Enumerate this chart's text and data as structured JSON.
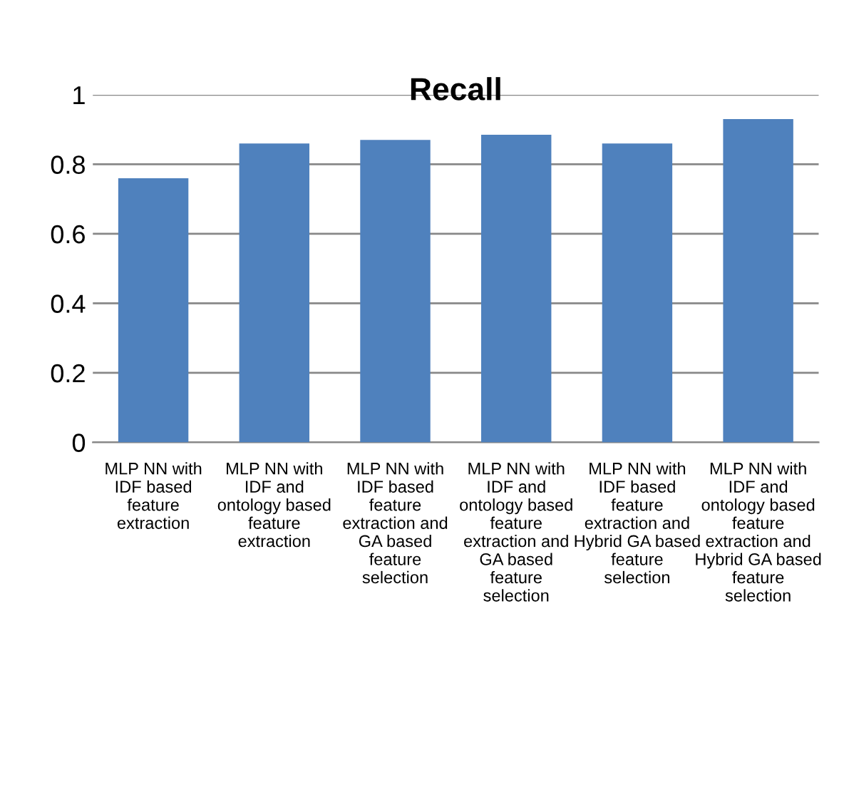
{
  "chart_data": {
    "type": "bar",
    "title": "Recall",
    "categories": [
      "MLP NN with\nIDF based\nfeature\nextraction",
      "MLP NN with\nIDF and\nontology based\nfeature\nextraction",
      "MLP NN with\nIDF based\nfeature\nextraction and\nGA based\nfeature\nselection",
      "MLP NN with\nIDF and\nontology based\nfeature\nextraction and\nGA based\nfeature\nselection",
      "MLP NN with\nIDF based\nfeature\nextraction and\nHybrid GA based\nfeature\nselection",
      "MLP NN with\nIDF and\nontology based\nfeature\nextraction and\nHybrid GA based\nfeature\nselection"
    ],
    "values": [
      0.76,
      0.86,
      0.87,
      0.885,
      0.86,
      0.93
    ],
    "color": "#4f81bd",
    "ylim": [
      0,
      1
    ],
    "yticks": [
      0,
      0.2,
      0.4,
      0.6,
      0.8,
      1
    ],
    "grid": "y"
  }
}
